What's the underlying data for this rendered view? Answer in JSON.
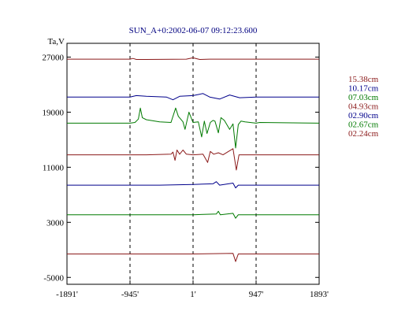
{
  "chart_data": {
    "type": "line",
    "title": "SUN_A+0:2002-06-07 09:12:23.600",
    "ylabel": "Ta,V",
    "xlabel": "",
    "ylim": [
      -6000,
      29000
    ],
    "xlim": [
      -1891,
      1893
    ],
    "yticks": [
      27000,
      19000,
      11000,
      3000,
      -5000
    ],
    "ytick_labels": [
      "27000",
      "19000",
      "11000",
      "3000",
      "-5000"
    ],
    "xticks": [
      -1891,
      -945,
      1,
      947,
      1893
    ],
    "xtick_labels": [
      "-1891'",
      "-945'",
      "1'",
      "947'",
      "1893'"
    ],
    "vlines": [
      -945,
      1,
      947
    ],
    "grid": false,
    "legend_position": "right",
    "series": [
      {
        "name": "15.38cm",
        "color": "#8B1A1A",
        "values": [
          [
            -1891,
            26700
          ],
          [
            -945,
            26700
          ],
          [
            -900,
            26800
          ],
          [
            -850,
            26650
          ],
          [
            -700,
            26650
          ],
          [
            -100,
            26700
          ],
          [
            0,
            26900
          ],
          [
            100,
            26650
          ],
          [
            250,
            26700
          ],
          [
            947,
            26700
          ],
          [
            1893,
            26700
          ]
        ]
      },
      {
        "name": "10.17cm",
        "color": "#00008B",
        "values": [
          [
            -1891,
            21200
          ],
          [
            -945,
            21200
          ],
          [
            -850,
            21400
          ],
          [
            -700,
            21300
          ],
          [
            -400,
            21200
          ],
          [
            -300,
            20800
          ],
          [
            -200,
            21300
          ],
          [
            0,
            21400
          ],
          [
            150,
            21700
          ],
          [
            250,
            21200
          ],
          [
            400,
            20900
          ],
          [
            550,
            21500
          ],
          [
            700,
            21100
          ],
          [
            947,
            21200
          ],
          [
            1893,
            21200
          ]
        ]
      },
      {
        "name": "07.03cm",
        "color": "#007A00",
        "values": [
          [
            -1891,
            17400
          ],
          [
            -945,
            17400
          ],
          [
            -870,
            17500
          ],
          [
            -820,
            18000
          ],
          [
            -790,
            19600
          ],
          [
            -760,
            18200
          ],
          [
            -700,
            17900
          ],
          [
            -500,
            17600
          ],
          [
            -330,
            17500
          ],
          [
            -260,
            19600
          ],
          [
            -220,
            18400
          ],
          [
            -150,
            17600
          ],
          [
            -120,
            16500
          ],
          [
            -60,
            19000
          ],
          [
            0,
            17500
          ],
          [
            80,
            17600
          ],
          [
            130,
            15400
          ],
          [
            170,
            17700
          ],
          [
            210,
            15900
          ],
          [
            260,
            17500
          ],
          [
            300,
            17800
          ],
          [
            330,
            17700
          ],
          [
            380,
            16000
          ],
          [
            420,
            18200
          ],
          [
            470,
            17800
          ],
          [
            550,
            16500
          ],
          [
            600,
            17300
          ],
          [
            640,
            13800
          ],
          [
            680,
            17200
          ],
          [
            720,
            17700
          ],
          [
            780,
            17600
          ],
          [
            947,
            17400
          ],
          [
            1000,
            17500
          ],
          [
            1893,
            17400
          ]
        ]
      },
      {
        "name": "04.93cm",
        "color": "#8B1A1A",
        "values": [
          [
            -1891,
            12800
          ],
          [
            -945,
            12800
          ],
          [
            -700,
            12800
          ],
          [
            -330,
            12900
          ],
          [
            -300,
            13200
          ],
          [
            -270,
            12000
          ],
          [
            -240,
            13500
          ],
          [
            -200,
            12900
          ],
          [
            -150,
            13500
          ],
          [
            -100,
            12900
          ],
          [
            0,
            12800
          ],
          [
            150,
            12900
          ],
          [
            220,
            11700
          ],
          [
            260,
            13300
          ],
          [
            310,
            12900
          ],
          [
            380,
            13100
          ],
          [
            450,
            12800
          ],
          [
            600,
            13700
          ],
          [
            650,
            10600
          ],
          [
            690,
            12800
          ],
          [
            947,
            12800
          ],
          [
            1893,
            12800
          ]
        ]
      },
      {
        "name": "02.90cm",
        "color": "#00008B",
        "values": [
          [
            -1891,
            8400
          ],
          [
            -945,
            8400
          ],
          [
            -500,
            8400
          ],
          [
            0,
            8500
          ],
          [
            300,
            8600
          ],
          [
            350,
            8900
          ],
          [
            400,
            8400
          ],
          [
            600,
            8700
          ],
          [
            640,
            8000
          ],
          [
            680,
            8400
          ],
          [
            947,
            8400
          ],
          [
            1893,
            8400
          ]
        ]
      },
      {
        "name": "02.67cm",
        "color": "#007A00",
        "values": [
          [
            -1891,
            4100
          ],
          [
            -945,
            4100
          ],
          [
            0,
            4100
          ],
          [
            350,
            4200
          ],
          [
            380,
            4600
          ],
          [
            410,
            4100
          ],
          [
            600,
            4300
          ],
          [
            640,
            3600
          ],
          [
            680,
            4100
          ],
          [
            947,
            4100
          ],
          [
            1893,
            4100
          ]
        ]
      },
      {
        "name": "02.24cm",
        "color": "#8B1A1A",
        "values": [
          [
            -1891,
            -1600
          ],
          [
            -945,
            -1600
          ],
          [
            0,
            -1600
          ],
          [
            600,
            -1500
          ],
          [
            640,
            -2700
          ],
          [
            680,
            -1600
          ],
          [
            947,
            -1600
          ],
          [
            1893,
            -1600
          ]
        ]
      }
    ]
  }
}
